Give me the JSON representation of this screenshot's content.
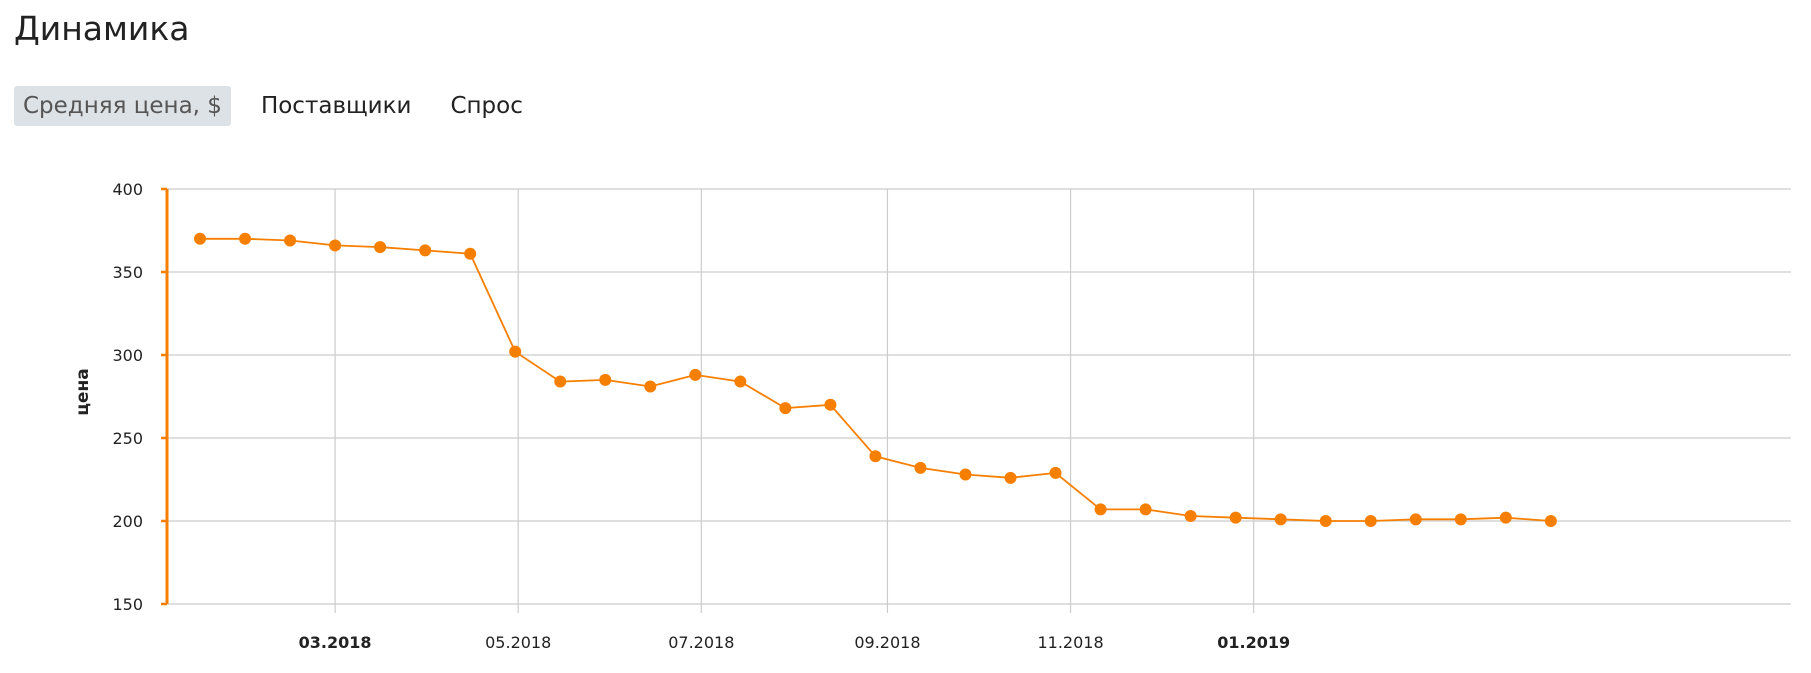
{
  "page": {
    "title": "Динамика"
  },
  "tabs": [
    {
      "label": "Средняя цена, $",
      "active": true
    },
    {
      "label": "Поставщики",
      "active": false
    },
    {
      "label": "Спрос",
      "active": false
    }
  ],
  "colors": {
    "accent": "#f77f00",
    "grid": "#cccccc",
    "tab_active_bg": "#dde2e6"
  },
  "chart_data": {
    "type": "line",
    "title": "",
    "xlabel": "",
    "ylabel": "цена",
    "ylim": [
      150,
      400
    ],
    "yticks": [
      150,
      200,
      250,
      300,
      350,
      400
    ],
    "xlim": [
      "2018-01-04",
      "2019-06-29"
    ],
    "grid": true,
    "legend": "none",
    "x_ticks": [
      {
        "label": "03.2018",
        "date": "2018-03-01",
        "bold": true
      },
      {
        "label": "05.2018",
        "date": "2018-05-01",
        "bold": false
      },
      {
        "label": "07.2018",
        "date": "2018-07-01",
        "bold": false
      },
      {
        "label": "09.2018",
        "date": "2018-09-01",
        "bold": false
      },
      {
        "label": "11.2018",
        "date": "2018-11-01",
        "bold": false
      },
      {
        "label": "01.2019",
        "date": "2019-01-01",
        "bold": true
      }
    ],
    "series": [
      {
        "color": "#f77f00",
        "points": [
          {
            "x": "2018-01-15",
            "y": 370
          },
          {
            "x": "2018-01-30",
            "y": 370
          },
          {
            "x": "2018-02-14",
            "y": 369
          },
          {
            "x": "2018-03-01",
            "y": 366
          },
          {
            "x": "2018-03-16",
            "y": 365
          },
          {
            "x": "2018-03-31",
            "y": 363
          },
          {
            "x": "2018-04-15",
            "y": 361
          },
          {
            "x": "2018-04-30",
            "y": 302
          },
          {
            "x": "2018-05-15",
            "y": 284
          },
          {
            "x": "2018-05-30",
            "y": 285
          },
          {
            "x": "2018-06-14",
            "y": 281
          },
          {
            "x": "2018-06-29",
            "y": 288
          },
          {
            "x": "2018-07-14",
            "y": 284
          },
          {
            "x": "2018-07-29",
            "y": 268
          },
          {
            "x": "2018-08-13",
            "y": 270
          },
          {
            "x": "2018-08-28",
            "y": 239
          },
          {
            "x": "2018-09-12",
            "y": 232
          },
          {
            "x": "2018-09-27",
            "y": 228
          },
          {
            "x": "2018-10-12",
            "y": 226
          },
          {
            "x": "2018-10-27",
            "y": 229
          },
          {
            "x": "2018-11-11",
            "y": 207
          },
          {
            "x": "2018-11-26",
            "y": 207
          },
          {
            "x": "2018-12-11",
            "y": 203
          },
          {
            "x": "2018-12-26",
            "y": 202
          },
          {
            "x": "2019-01-10",
            "y": 201
          },
          {
            "x": "2019-01-25",
            "y": 200
          },
          {
            "x": "2019-02-09",
            "y": 200
          },
          {
            "x": "2019-02-24",
            "y": 201
          },
          {
            "x": "2019-03-11",
            "y": 201
          },
          {
            "x": "2019-03-26",
            "y": 202
          },
          {
            "x": "2019-04-10",
            "y": 200
          }
        ]
      }
    ]
  }
}
